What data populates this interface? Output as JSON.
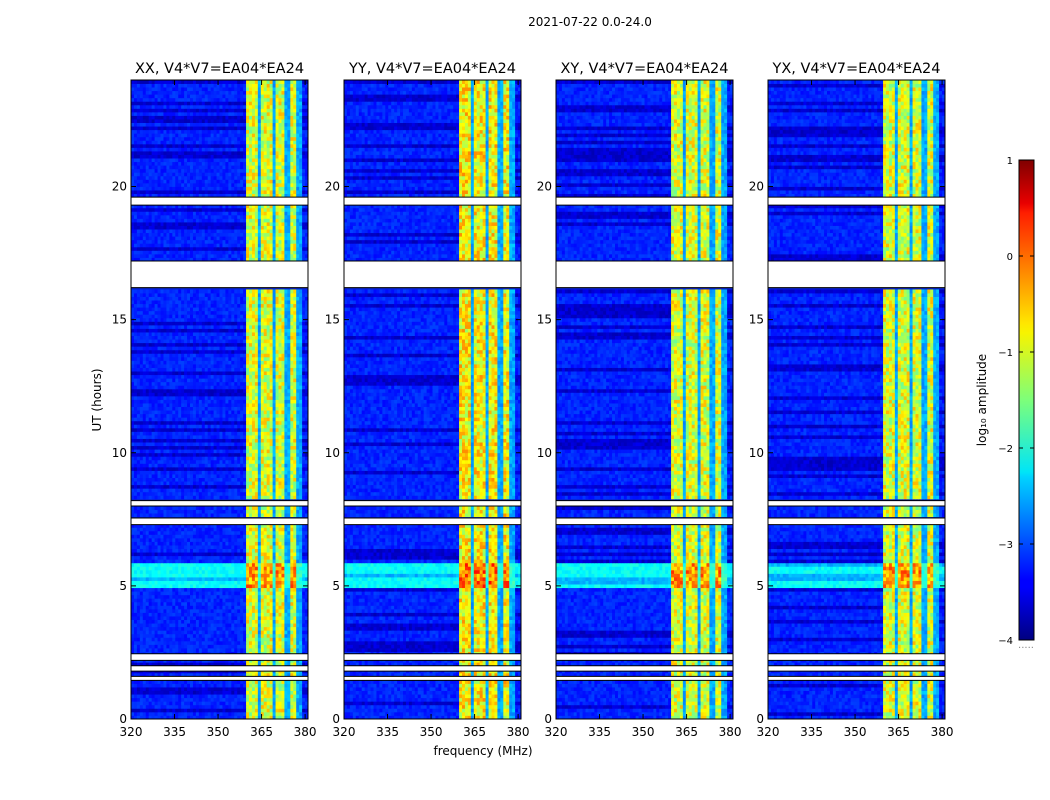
{
  "chart_data": {
    "type": "heatmap",
    "suptitle": "2021-07-22 0.0-24.0",
    "panels": [
      {
        "title": "XX, V4*V7=EA04*EA24"
      },
      {
        "title": "YY, V4*V7=EA04*EA24"
      },
      {
        "title": "XY, V4*V7=EA04*EA24"
      },
      {
        "title": "YX, V4*V7=EA04*EA24"
      }
    ],
    "xlabel": "frequency (MHz)",
    "ylabel": "UT (hours)",
    "xlim": [
      320,
      381
    ],
    "ylim": [
      0,
      24
    ],
    "xticks": [
      320,
      335,
      350,
      365,
      380
    ],
    "yticks": [
      0,
      5,
      10,
      15,
      20
    ],
    "colorbar": {
      "label": "log₁₀ amplitude",
      "range": [
        -4,
        1
      ],
      "ticks": [
        -4,
        -3,
        -2,
        -1,
        0,
        1
      ],
      "colormap": "jet",
      "extra_text": "....."
    },
    "occupied_band_mhz": [
      360,
      379
    ],
    "band_channel_gaps_mhz": [
      364.5,
      369,
      373.8,
      377.9
    ],
    "flagged_gaps_ut_hours": [
      [
        16.2,
        17.2
      ],
      [
        19.3,
        19.6
      ],
      [
        2.2,
        2.45
      ],
      [
        1.8,
        2.0
      ],
      [
        1.45,
        1.6
      ],
      [
        7.3,
        7.55
      ],
      [
        8.0,
        8.2
      ]
    ],
    "bright_rfi_bands_ut_hours": [
      [
        5.0,
        5.8
      ]
    ]
  }
}
